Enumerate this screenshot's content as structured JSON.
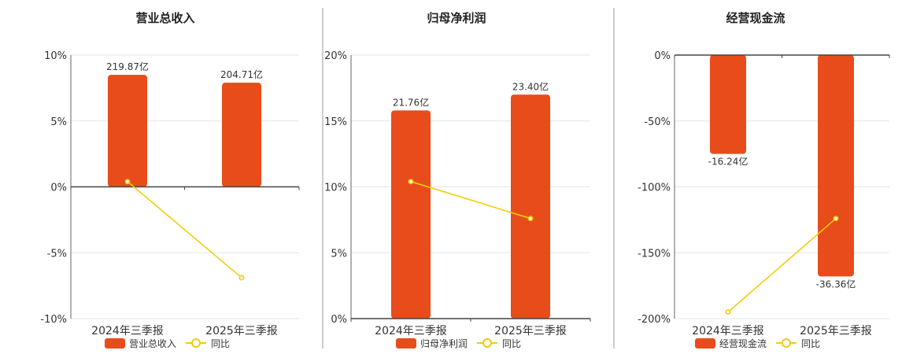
{
  "chart_data": [
    {
      "type": "bar",
      "title": "营业总收入",
      "categories": [
        "2024年三季报",
        "2025年三季报"
      ],
      "bar_values": [
        219.87,
        204.71
      ],
      "bar_labels": [
        "219.87亿",
        "204.71亿"
      ],
      "bar_heights_pct": [
        8.5,
        7.9
      ],
      "line_values": [
        0.4,
        -6.9
      ],
      "ylim": [
        -10,
        10
      ],
      "yticks": [
        "10%",
        "5%",
        "0%",
        "-5%",
        "-10%"
      ],
      "series": [
        {
          "name": "营业总收入"
        },
        {
          "name": "同比"
        }
      ],
      "bar_color": "#e84c1a",
      "line_color": "#f2cc0c"
    },
    {
      "type": "bar",
      "title": "归母净利润",
      "categories": [
        "2024年三季报",
        "2025年三季报"
      ],
      "bar_values": [
        21.76,
        23.4
      ],
      "bar_labels": [
        "21.76亿",
        "23.40亿"
      ],
      "bar_heights_pct": [
        15.8,
        17.0
      ],
      "line_values": [
        10.4,
        7.6
      ],
      "ylim": [
        0,
        20
      ],
      "yticks": [
        "20%",
        "15%",
        "10%",
        "5%",
        "0%"
      ],
      "series": [
        {
          "name": "归母净利润"
        },
        {
          "name": "同比"
        }
      ],
      "bar_color": "#e84c1a",
      "line_color": "#f2cc0c"
    },
    {
      "type": "bar",
      "title": "经营现金流",
      "categories": [
        "2024年三季报",
        "2025年三季报"
      ],
      "bar_values": [
        -16.24,
        -36.36
      ],
      "bar_labels": [
        "-16.24亿",
        "-36.36亿"
      ],
      "bar_heights_pct": [
        -75,
        -168
      ],
      "line_values": [
        -195,
        -124
      ],
      "ylim": [
        -200,
        0
      ],
      "yticks": [
        "0%",
        "-50%",
        "-100%",
        "-150%",
        "-200%"
      ],
      "series": [
        {
          "name": "经营现金流"
        },
        {
          "name": "同比"
        }
      ],
      "bar_color": "#e84c1a",
      "line_color": "#f2cc0c"
    }
  ]
}
